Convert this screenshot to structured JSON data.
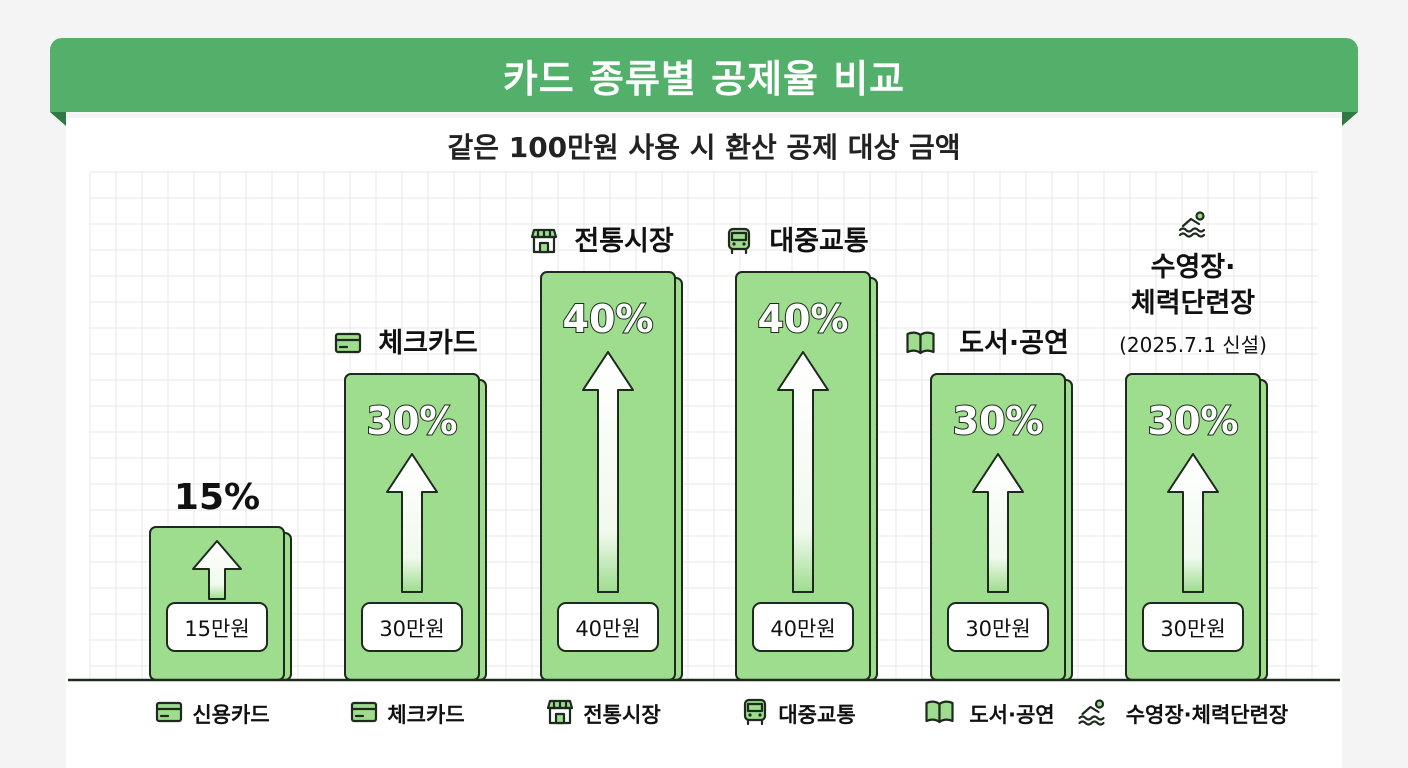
{
  "header": {
    "title": "카드 종류별 공제율 비교",
    "subtitle": "같은 100만원 사용 시 환산 공제 대상 금액"
  },
  "colors": {
    "banner": "#52b06a",
    "bar_fill": "#9edc8e",
    "bar_stroke": "#1e2a1e",
    "grid": "#e6e8e6"
  },
  "chart_data": {
    "type": "bar",
    "categories": [
      "신용카드",
      "체크카드",
      "전통시장",
      "대중교통",
      "도서·공연",
      "수영장·체력단련장"
    ],
    "values": [
      15,
      30,
      40,
      40,
      30,
      30
    ],
    "value_unit": "만원",
    "ylim": [
      0,
      40
    ],
    "grid": true,
    "rate_labels": [
      "15%",
      "30%",
      "40%",
      "40%",
      "30%",
      "30%"
    ],
    "amount_labels": [
      "15만원",
      "30만원",
      "40만원",
      "40만원",
      "30만원",
      "30만원"
    ],
    "top_labels": [
      {
        "lines": []
      },
      {
        "icon": "card-icon",
        "lines": [
          "체크카드"
        ]
      },
      {
        "icon": "store-icon",
        "lines": [
          "전통시장"
        ]
      },
      {
        "icon": "bus-icon",
        "lines": [
          "대중교통"
        ]
      },
      {
        "icon": "book-icon",
        "lines": [
          "도서·공연"
        ]
      },
      {
        "icon": "swimmer-icon",
        "lines": [
          "수영장·",
          "체력단련장"
        ],
        "note": "(2025.7.1 신설)"
      }
    ],
    "category_icons": [
      "card-icon",
      "card-icon",
      "store-icon",
      "bus-icon",
      "book-icon",
      "swimmer-icon"
    ]
  }
}
